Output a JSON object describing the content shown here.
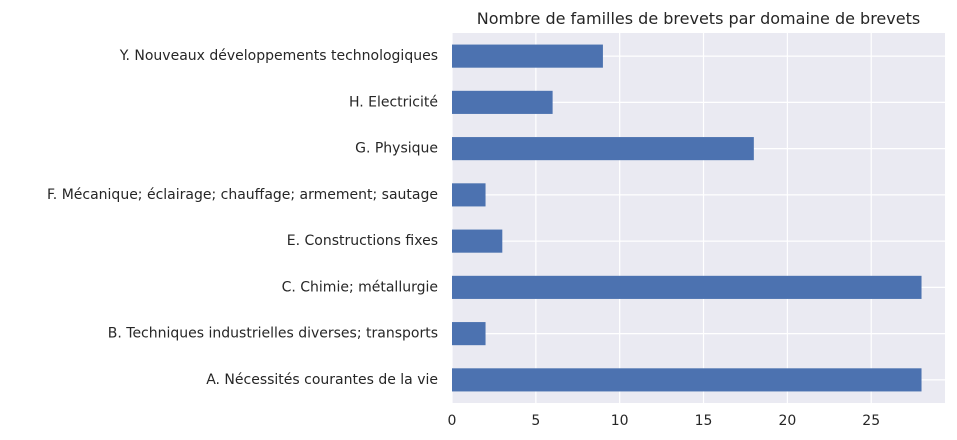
{
  "chart_data": {
    "type": "bar",
    "orientation": "horizontal",
    "title": "Nombre de familles de brevets par domaine de brevets",
    "xlabel": "",
    "ylabel": "",
    "categories": [
      "A. Nécessités courantes de la vie",
      "B. Techniques industrielles diverses; transports",
      "C. Chimie; métallurgie",
      "E. Constructions fixes",
      "F. Mécanique; éclairage; chauffage; armement; sautage",
      "G. Physique",
      "H. Electricité",
      "Y. Nouveaux développements technologiques"
    ],
    "values": [
      28,
      2,
      28,
      3,
      2,
      18,
      6,
      9
    ],
    "xlim": [
      0,
      29.4
    ],
    "xticks": [
      0,
      5,
      10,
      15,
      20,
      25
    ],
    "grid": true,
    "legend": "none",
    "colors": {
      "bar": "#4c72b0",
      "background": "#eaeaf2",
      "grid": "#ffffff",
      "text": "#262626"
    }
  }
}
